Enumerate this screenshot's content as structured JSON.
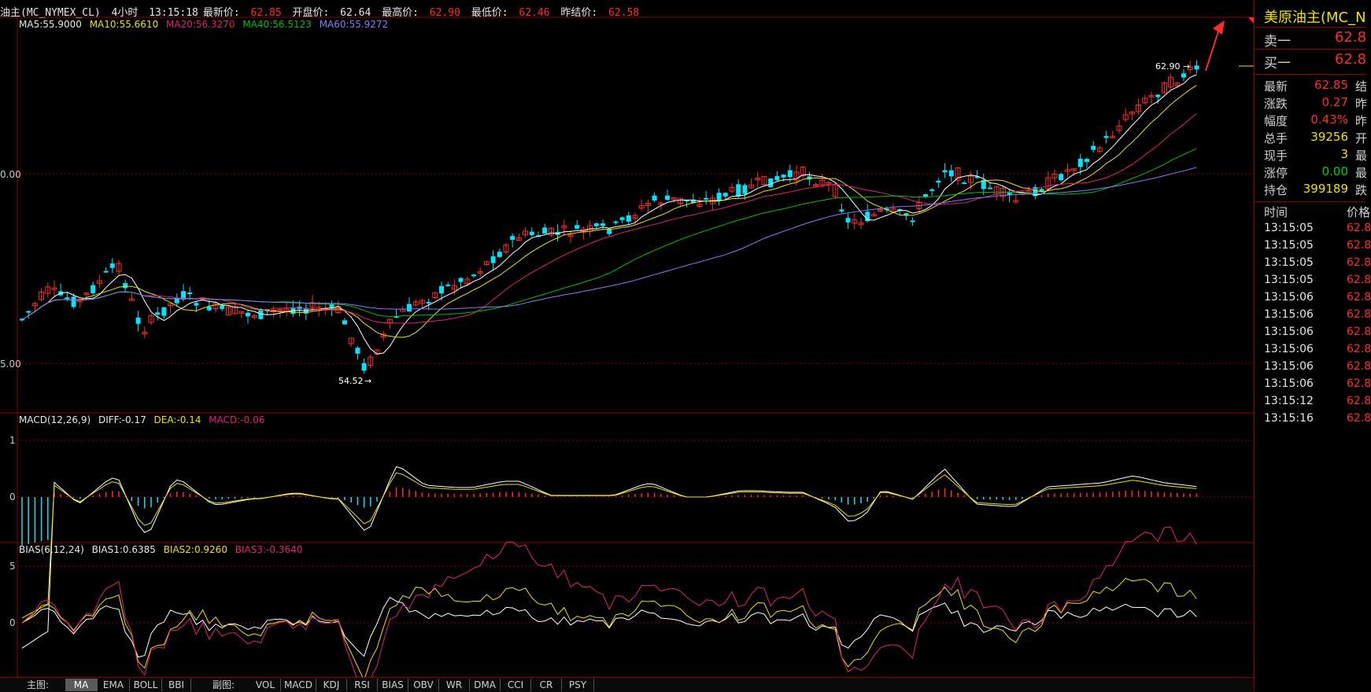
{
  "header": {
    "symbol": "油主(MC_NYMEX_CL)",
    "period": "4小时",
    "time": "13:15:18",
    "latest_label": "最新价:",
    "latest_value": "62.85",
    "open_label": "开盘价:",
    "open_value": "62.64",
    "high_label": "最高价:",
    "high_value": "62.90",
    "low_label": "最低价:",
    "low_value": "62.46",
    "prev_label": "昨结价:",
    "prev_value": "62.58"
  },
  "ma_legend": {
    "ma5": "MA5:55.9000",
    "ma10": "MA10:55.6610",
    "ma20": "MA20:56.3270",
    "ma40": "MA40:56.5123",
    "ma60": "MA60:55.9272"
  },
  "price_axis": {
    "tick_upper": "0.00",
    "tick_lower": "5.00"
  },
  "annotations": {
    "high_marker": "62.90",
    "low_marker": "54.52"
  },
  "macd": {
    "title": "MACD(12,26,9)",
    "diff": "DIFF:-0.17",
    "dea": "DEA:-0.14",
    "macd": "MACD:-0.06",
    "tick_1": "1",
    "tick_0": "0"
  },
  "bias": {
    "title": "BIAS(6,12,24)",
    "bias1": "BIAS1:0.6385",
    "bias2": "BIAS2:0.9260",
    "bias3": "BIAS3:-0.3640",
    "tick_5": "5",
    "tick_0": "0"
  },
  "bottom_tabs": {
    "main_label": "主图:",
    "main_tabs": [
      "MA",
      "EMA",
      "BOLL",
      "BBI"
    ],
    "sub_label": "副图:",
    "sub_tabs": [
      "VOL",
      "MACD",
      "KDJ",
      "RSI",
      "BIAS",
      "OBV",
      "WR",
      "DMA",
      "CCI",
      "CR",
      "PSY"
    ]
  },
  "side_panel": {
    "title": "美原油主(MC_N",
    "ask_label": "卖一",
    "ask_value": "62.8",
    "bid_label": "买一",
    "bid_value": "62.8",
    "quote": [
      {
        "label": "最新",
        "value": "62.85",
        "tail": "结",
        "color": "#ff2b2b"
      },
      {
        "label": "涨跌",
        "value": "0.27",
        "tail": "昨",
        "color": "#ff2b2b"
      },
      {
        "label": "幅度",
        "value": "0.43%",
        "tail": "昨",
        "color": "#ff2b2b"
      },
      {
        "label": "总手",
        "value": "39256",
        "tail": "开",
        "color": "#f0e000"
      },
      {
        "label": "现手",
        "value": "3",
        "tail": "最",
        "color": "#f0e000"
      },
      {
        "label": "涨停",
        "value": "0.00",
        "tail": "最",
        "color": "#00d000"
      },
      {
        "label": "持仓",
        "value": "399189",
        "tail": "跌",
        "color": "#f0e000"
      }
    ],
    "ticks_header_time": "时间",
    "ticks_header_price": "价格",
    "ticks": [
      {
        "time": "13:15:05",
        "price": "62.8"
      },
      {
        "time": "13:15:05",
        "price": "62.8"
      },
      {
        "time": "13:15:05",
        "price": "62.8"
      },
      {
        "time": "13:15:05",
        "price": "62.8"
      },
      {
        "time": "13:15:06",
        "price": "62.8"
      },
      {
        "time": "13:15:06",
        "price": "62.8"
      },
      {
        "time": "13:15:06",
        "price": "62.8"
      },
      {
        "time": "13:15:06",
        "price": "62.8"
      },
      {
        "time": "13:15:06",
        "price": "62.8"
      },
      {
        "time": "13:15:06",
        "price": "62.8"
      },
      {
        "time": "13:15:12",
        "price": "62.8"
      },
      {
        "time": "13:15:16",
        "price": "62.8"
      }
    ]
  },
  "colors": {
    "up": "#ff2b2b",
    "down": "#00e5ff",
    "ma5": "#ffffff",
    "ma10": "#f0e000",
    "ma20": "#e0207a",
    "ma40": "#00c000",
    "ma60": "#7f7fff",
    "border": "#8b0000"
  }
}
